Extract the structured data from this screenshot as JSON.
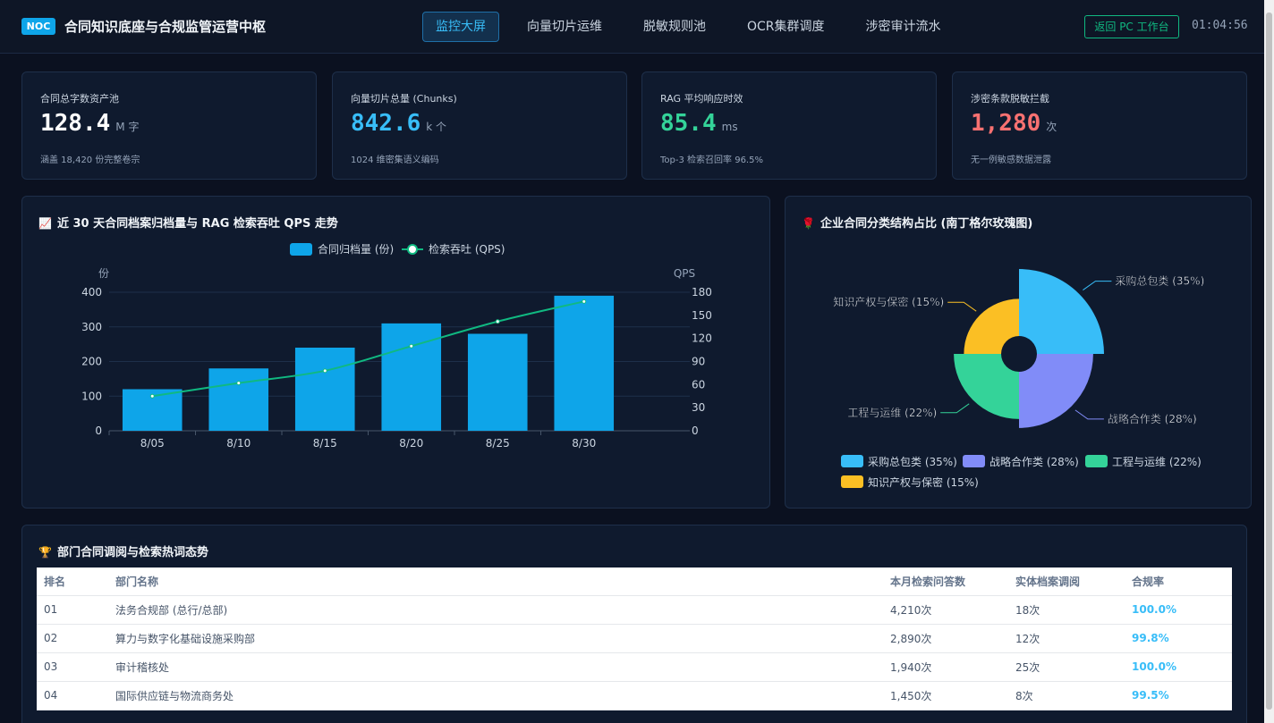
{
  "header": {
    "badge": "NOC",
    "title": "合同知识底座与合规监管运营中枢",
    "tabs": [
      "监控大屏",
      "向量切片运维",
      "脱敏规则池",
      "OCR集群调度",
      "涉密审计流水"
    ],
    "back_button": "返回 PC 工作台",
    "clock": "01:04:56"
  },
  "kpis": [
    {
      "label": "合同总字数资产池",
      "value": "128.4",
      "unit": "M 字",
      "note": "涵盖 18,420 份完整卷宗",
      "color": "#ffffff"
    },
    {
      "label": "向量切片总量 (Chunks)",
      "value": "842.6",
      "unit": "k 个",
      "note": "1024 维密集语义编码",
      "color": "#38bdf8"
    },
    {
      "label": "RAG 平均响应时效",
      "value": "85.4",
      "unit": "ms",
      "note": "Top-3 检索召回率 96.5%",
      "color": "#34d399"
    },
    {
      "label": "涉密条款脱敏拦截",
      "value": "1,280",
      "unit": "次",
      "note": "无一例敏感数据泄露",
      "color": "#f87171"
    }
  ],
  "trend_panel": {
    "icon": "📈",
    "title": "近 30 天合同档案归档量与 RAG 检索吞吐 QPS 走势"
  },
  "rose_panel": {
    "icon": "🌹",
    "title": "企业合同分类结构占比 (南丁格尔玫瑰图)"
  },
  "table_panel": {
    "icon": "🏆",
    "title": "部门合同调阅与检索热词态势",
    "columns": [
      "排名",
      "部门名称",
      "本月检索问答数",
      "实体档案调阅",
      "合规率"
    ],
    "rows": [
      [
        "01",
        "法务合规部 (总行/总部)",
        "4,210次",
        "18次",
        "100.0%"
      ],
      [
        "02",
        "算力与数字化基础设施采购部",
        "2,890次",
        "12次",
        "99.8%"
      ],
      [
        "03",
        "审计稽核处",
        "1,940次",
        "25次",
        "100.0%"
      ],
      [
        "04",
        "国际供应链与物流商务处",
        "1,450次",
        "8次",
        "99.5%"
      ]
    ]
  },
  "chart_data": [
    {
      "type": "bar",
      "categories": [
        "8/05",
        "8/10",
        "8/15",
        "8/20",
        "8/25",
        "8/30"
      ],
      "series": [
        {
          "name": "合同归档量 (份)",
          "type": "bar",
          "axis": "left",
          "values": [
            120,
            180,
            240,
            310,
            280,
            390
          ],
          "color": "#0ea5e9"
        },
        {
          "name": "检索吞吐 (QPS)",
          "type": "line",
          "axis": "right",
          "values": [
            45,
            62,
            78,
            110,
            142,
            168
          ],
          "color": "#10b981"
        }
      ],
      "ylabel_left": "份",
      "ylabel_right": "QPS",
      "ylim_left": [
        0,
        400
      ],
      "yticks_left": [
        0,
        100,
        200,
        300,
        400
      ],
      "ylim_right": [
        0,
        180
      ],
      "yticks_right": [
        0,
        30,
        60,
        90,
        120,
        150,
        180
      ],
      "grid": true,
      "legend": "top-center"
    },
    {
      "type": "pie",
      "variant": "nightingale-rose",
      "categories": [
        "采购总包类",
        "战略合作类",
        "工程与运维",
        "知识产权与保密"
      ],
      "values": [
        35,
        28,
        22,
        15
      ],
      "labels": [
        "采购总包类 (35%)",
        "战略合作类 (28%)",
        "工程与运维 (22%)",
        "知识产权与保密 (15%)"
      ],
      "colors": [
        "#38bdf8",
        "#818cf8",
        "#34d399",
        "#fbbf24"
      ],
      "legend": "bottom"
    }
  ]
}
